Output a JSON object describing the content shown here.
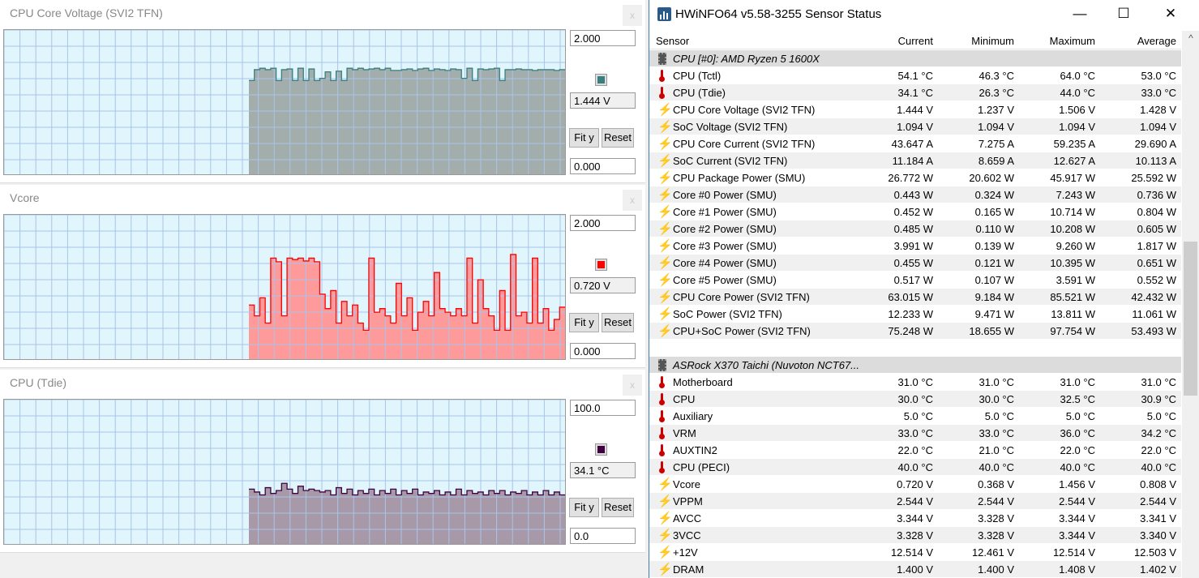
{
  "graphs": [
    {
      "title": "CPU Core Voltage (SVI2 TFN)",
      "max": "2.000",
      "min": "0.000",
      "current": "1.444 V",
      "color": "#3a7f7f",
      "fill": "#a3aeac",
      "line": "#3a7f7f",
      "ymax": 2,
      "values": [
        1.3,
        1.45,
        1.47,
        1.45,
        1.47,
        1.3,
        1.45,
        1.46,
        1.3,
        1.47,
        1.3,
        1.46,
        1.3,
        1.33,
        1.42,
        1.3,
        1.43,
        1.3,
        1.47,
        1.45,
        1.47,
        1.45,
        1.46,
        1.47,
        1.45,
        1.47,
        1.44,
        1.44,
        1.45,
        1.46,
        1.44,
        1.46,
        1.47,
        1.44,
        1.46,
        1.45,
        1.44,
        1.46,
        1.45,
        1.33,
        1.47,
        1.3,
        1.46,
        1.45,
        1.46,
        1.47,
        1.3,
        1.45,
        1.45,
        1.46,
        1.45,
        1.45,
        1.44,
        1.45,
        1.45,
        1.45,
        1.44,
        1.45
      ]
    },
    {
      "title": "Vcore",
      "max": "2.000",
      "min": "0.000",
      "current": "0.720 V",
      "color": "#ff0000",
      "fill": "#ff9a9a",
      "line": "#ff0000",
      "ymax": 2,
      "values": [
        0.75,
        0.6,
        0.85,
        0.5,
        1.4,
        1.35,
        0.6,
        1.4,
        1.38,
        1.4,
        1.36,
        1.4,
        1.35,
        0.9,
        0.7,
        0.95,
        0.5,
        0.8,
        0.6,
        0.75,
        0.5,
        0.4,
        1.4,
        0.65,
        0.7,
        0.6,
        0.5,
        1.05,
        0.6,
        0.85,
        0.4,
        0.65,
        0.8,
        0.6,
        1.2,
        0.7,
        0.65,
        0.6,
        0.7,
        0.6,
        1.4,
        0.5,
        1.1,
        0.7,
        0.6,
        0.4,
        0.95,
        0.4,
        1.45,
        0.6,
        0.65,
        0.5,
        1.4,
        0.5,
        0.7,
        0.4,
        0.55,
        0.72
      ]
    },
    {
      "title": "CPU (Tdie)",
      "max": "100.0",
      "min": "0.0",
      "current": "34.1 °C",
      "color": "#400040",
      "fill": "#a899a8",
      "line": "#400040",
      "ymax": 100,
      "values": [
        38,
        36,
        34,
        39,
        35,
        37,
        42,
        38,
        35,
        40,
        37,
        38,
        37,
        36,
        37,
        34,
        39,
        35,
        38,
        34,
        37,
        35,
        38,
        34,
        37,
        35,
        38,
        34,
        37,
        35,
        38,
        34,
        36,
        35,
        37,
        34,
        36,
        34,
        38,
        34,
        37,
        35,
        36,
        34,
        37,
        35,
        37,
        34,
        36,
        35,
        37,
        34,
        36,
        34,
        37,
        34,
        36,
        34
      ]
    }
  ],
  "buttons": {
    "fit": "Fit y",
    "reset": "Reset"
  },
  "window": {
    "title": "HWiNFO64 v5.58-3255 Sensor Status",
    "minimize": "—",
    "maximize": "☐",
    "close": "✕"
  },
  "columns": [
    "Sensor",
    "Current",
    "Minimum",
    "Maximum",
    "Average"
  ],
  "rows": [
    {
      "group": "CPU [#0]: AMD Ryzen 5 1600X"
    },
    {
      "icon": "thermometer",
      "name": "CPU (Tctl)",
      "v": [
        "54.1 °C",
        "46.3 °C",
        "64.0 °C",
        "53.0 °C"
      ]
    },
    {
      "icon": "thermometer",
      "name": "CPU (Tdie)",
      "v": [
        "34.1 °C",
        "26.3 °C",
        "44.0 °C",
        "33.0 °C"
      ]
    },
    {
      "icon": "bolt",
      "name": "CPU Core Voltage (SVI2 TFN)",
      "v": [
        "1.444 V",
        "1.237 V",
        "1.506 V",
        "1.428 V"
      ]
    },
    {
      "icon": "bolt",
      "name": "SoC Voltage (SVI2 TFN)",
      "v": [
        "1.094 V",
        "1.094 V",
        "1.094 V",
        "1.094 V"
      ]
    },
    {
      "icon": "bolt",
      "name": "CPU Core Current (SVI2 TFN)",
      "v": [
        "43.647 A",
        "7.275 A",
        "59.235 A",
        "29.690 A"
      ]
    },
    {
      "icon": "bolt",
      "name": "SoC Current (SVI2 TFN)",
      "v": [
        "11.184 A",
        "8.659 A",
        "12.627 A",
        "10.113 A"
      ]
    },
    {
      "icon": "bolt",
      "name": "CPU Package Power (SMU)",
      "v": [
        "26.772 W",
        "20.602 W",
        "45.917 W",
        "25.592 W"
      ]
    },
    {
      "icon": "bolt",
      "name": "Core #0 Power (SMU)",
      "v": [
        "0.443 W",
        "0.324 W",
        "7.243 W",
        "0.736 W"
      ]
    },
    {
      "icon": "bolt",
      "name": "Core #1 Power (SMU)",
      "v": [
        "0.452 W",
        "0.165 W",
        "10.714 W",
        "0.804 W"
      ]
    },
    {
      "icon": "bolt",
      "name": "Core #2 Power (SMU)",
      "v": [
        "0.485 W",
        "0.110 W",
        "10.208 W",
        "0.605 W"
      ]
    },
    {
      "icon": "bolt",
      "name": "Core #3 Power (SMU)",
      "v": [
        "3.991 W",
        "0.139 W",
        "9.260 W",
        "1.817 W"
      ]
    },
    {
      "icon": "bolt",
      "name": "Core #4 Power (SMU)",
      "v": [
        "0.455 W",
        "0.121 W",
        "10.395 W",
        "0.651 W"
      ]
    },
    {
      "icon": "bolt",
      "name": "Core #5 Power (SMU)",
      "v": [
        "0.517 W",
        "0.107 W",
        "3.591 W",
        "0.552 W"
      ]
    },
    {
      "icon": "bolt",
      "name": "CPU Core Power (SVI2 TFN)",
      "v": [
        "63.015 W",
        "9.184 W",
        "85.521 W",
        "42.432 W"
      ]
    },
    {
      "icon": "bolt",
      "name": "SoC Power (SVI2 TFN)",
      "v": [
        "12.233 W",
        "9.471 W",
        "13.811 W",
        "11.061 W"
      ]
    },
    {
      "icon": "bolt",
      "name": "CPU+SoC Power (SVI2 TFN)",
      "v": [
        "75.248 W",
        "18.655 W",
        "97.754 W",
        "53.493 W"
      ]
    },
    {
      "blank": true
    },
    {
      "group": "ASRock X370 Taichi (Nuvoton NCT67..."
    },
    {
      "icon": "thermometer",
      "name": "Motherboard",
      "v": [
        "31.0 °C",
        "31.0 °C",
        "31.0 °C",
        "31.0 °C"
      ]
    },
    {
      "icon": "thermometer",
      "name": "CPU",
      "v": [
        "30.0 °C",
        "30.0 °C",
        "32.5 °C",
        "30.9 °C"
      ]
    },
    {
      "icon": "thermometer",
      "name": "Auxiliary",
      "v": [
        "5.0 °C",
        "5.0 °C",
        "5.0 °C",
        "5.0 °C"
      ]
    },
    {
      "icon": "thermometer",
      "name": "VRM",
      "v": [
        "33.0 °C",
        "33.0 °C",
        "36.0 °C",
        "34.2 °C"
      ]
    },
    {
      "icon": "thermometer",
      "name": "AUXTIN2",
      "v": [
        "22.0 °C",
        "21.0 °C",
        "22.0 °C",
        "22.0 °C"
      ]
    },
    {
      "icon": "thermometer",
      "name": "CPU (PECI)",
      "v": [
        "40.0 °C",
        "40.0 °C",
        "40.0 °C",
        "40.0 °C"
      ]
    },
    {
      "icon": "bolt",
      "name": "Vcore",
      "v": [
        "0.720 V",
        "0.368 V",
        "1.456 V",
        "0.808 V"
      ]
    },
    {
      "icon": "bolt",
      "name": "VPPM",
      "v": [
        "2.544 V",
        "2.544 V",
        "2.544 V",
        "2.544 V"
      ]
    },
    {
      "icon": "bolt",
      "name": "AVCC",
      "v": [
        "3.344 V",
        "3.328 V",
        "3.344 V",
        "3.341 V"
      ]
    },
    {
      "icon": "bolt",
      "name": "3VCC",
      "v": [
        "3.328 V",
        "3.328 V",
        "3.344 V",
        "3.340 V"
      ]
    },
    {
      "icon": "bolt",
      "name": "+12V",
      "v": [
        "12.514 V",
        "12.461 V",
        "12.514 V",
        "12.503 V"
      ]
    },
    {
      "icon": "bolt",
      "name": "DRAM",
      "v": [
        "1.400 V",
        "1.400 V",
        "1.408 V",
        "1.402 V"
      ]
    }
  ]
}
